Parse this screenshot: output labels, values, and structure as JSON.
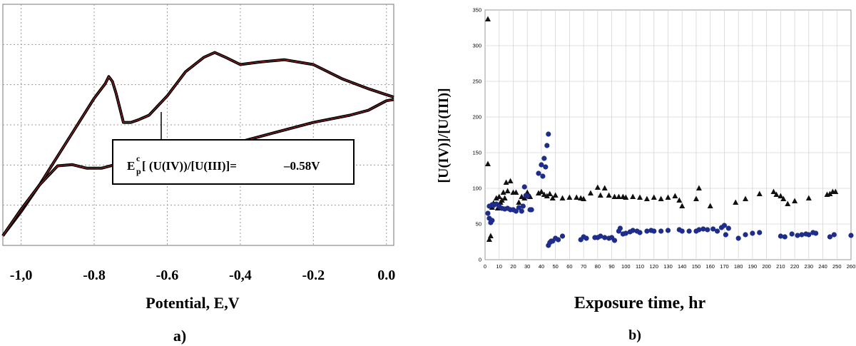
{
  "panel_a": {
    "xlabel": "Potential, E,V",
    "caption": "a)",
    "x_ticks": [
      "-1,0",
      "-0.8",
      "-0.6",
      "-0,4",
      "-0.2",
      "0.0"
    ],
    "annotation": {
      "e": "E",
      "sup": "c",
      "sub": "p",
      "rest": "[ (U(IV))/[U(III)]=",
      "value": "–0.58V"
    }
  },
  "panel_b": {
    "xlabel": "Exposure time, hr",
    "ylabel": "[U(IV)]/[U(III)]",
    "caption": "b)"
  },
  "chart_data": [
    {
      "type": "line",
      "xlabel": "Potential, E,V",
      "ylabel": "",
      "xlim": [
        -1.05,
        0.02
      ],
      "x_ticks": [
        -1.0,
        -0.8,
        -0.6,
        -0.4,
        -0.2,
        0.0
      ],
      "grid": true,
      "curve_color": "#000000",
      "trace_color": "#cc3333",
      "upper_branch": [
        [
          -1.05,
          0.04
        ],
        [
          -1.0,
          0.14
        ],
        [
          -0.95,
          0.25
        ],
        [
          -0.9,
          0.37
        ],
        [
          -0.85,
          0.49
        ],
        [
          -0.8,
          0.61
        ],
        [
          -0.77,
          0.67
        ],
        [
          -0.76,
          0.7
        ],
        [
          -0.75,
          0.68
        ],
        [
          -0.74,
          0.63
        ],
        [
          -0.73,
          0.57
        ],
        [
          -0.72,
          0.51
        ],
        [
          -0.7,
          0.51
        ],
        [
          -0.68,
          0.52
        ],
        [
          -0.65,
          0.54
        ],
        [
          -0.6,
          0.62
        ],
        [
          -0.55,
          0.72
        ],
        [
          -0.5,
          0.78
        ],
        [
          -0.47,
          0.8
        ],
        [
          -0.44,
          0.78
        ],
        [
          -0.4,
          0.75
        ],
        [
          -0.35,
          0.76
        ],
        [
          -0.28,
          0.77
        ],
        [
          -0.2,
          0.75
        ],
        [
          -0.12,
          0.69
        ],
        [
          -0.05,
          0.65
        ],
        [
          0.0,
          0.625
        ],
        [
          0.02,
          0.615
        ]
      ],
      "lower_branch": [
        [
          0.02,
          0.605
        ],
        [
          0.0,
          0.6
        ],
        [
          -0.05,
          0.56
        ],
        [
          -0.1,
          0.54
        ],
        [
          -0.2,
          0.51
        ],
        [
          -0.3,
          0.47
        ],
        [
          -0.4,
          0.43
        ],
        [
          -0.5,
          0.39
        ],
        [
          -0.55,
          0.36
        ],
        [
          -0.6,
          0.35
        ],
        [
          -0.65,
          0.335
        ],
        [
          -0.7,
          0.335
        ],
        [
          -0.73,
          0.34
        ],
        [
          -0.78,
          0.32
        ],
        [
          -0.82,
          0.32
        ],
        [
          -0.86,
          0.335
        ],
        [
          -0.9,
          0.33
        ],
        [
          -0.95,
          0.25
        ],
        [
          -1.0,
          0.15
        ],
        [
          -1.05,
          0.04
        ]
      ]
    },
    {
      "type": "scatter",
      "xlabel": "Exposure time, hr",
      "ylabel": "[U(IV)]/[U(III)]",
      "xlim": [
        0,
        260
      ],
      "ylim": [
        0,
        350
      ],
      "x_ticks": [
        0,
        10,
        20,
        30,
        40,
        50,
        60,
        70,
        80,
        90,
        100,
        110,
        120,
        130,
        140,
        150,
        160,
        170,
        180,
        190,
        200,
        210,
        220,
        230,
        240,
        250,
        260
      ],
      "y_ticks": [
        0,
        50,
        100,
        150,
        200,
        250,
        300,
        350
      ],
      "grid": true,
      "series": [
        {
          "marker": "triangle",
          "color": "#111111",
          "points": [
            [
              2,
              337
            ],
            [
              2,
              134
            ],
            [
              3,
              28
            ],
            [
              4,
              33
            ],
            [
              5,
              73
            ],
            [
              6,
              79
            ],
            [
              8,
              86
            ],
            [
              9,
              72
            ],
            [
              10,
              88
            ],
            [
              11,
              80
            ],
            [
              12,
              83
            ],
            [
              13,
              94
            ],
            [
              14,
              86
            ],
            [
              15,
              108
            ],
            [
              16,
              96
            ],
            [
              18,
              110
            ],
            [
              20,
              94
            ],
            [
              22,
              94
            ],
            [
              24,
              80
            ],
            [
              26,
              88
            ],
            [
              28,
              86
            ],
            [
              30,
              94
            ],
            [
              32,
              88
            ],
            [
              38,
              93
            ],
            [
              40,
              95
            ],
            [
              42,
              91
            ],
            [
              44,
              89
            ],
            [
              46,
              92
            ],
            [
              48,
              86
            ],
            [
              50,
              90
            ],
            [
              55,
              86
            ],
            [
              60,
              87
            ],
            [
              65,
              87
            ],
            [
              68,
              86
            ],
            [
              70,
              85
            ],
            [
              75,
              93
            ],
            [
              80,
              101
            ],
            [
              82,
              90
            ],
            [
              85,
              100
            ],
            [
              88,
              90
            ],
            [
              92,
              88
            ],
            [
              95,
              88
            ],
            [
              98,
              88
            ],
            [
              100,
              87
            ],
            [
              105,
              88
            ],
            [
              110,
              87
            ],
            [
              115,
              85
            ],
            [
              120,
              87
            ],
            [
              125,
              85
            ],
            [
              130,
              87
            ],
            [
              135,
              89
            ],
            [
              138,
              83
            ],
            [
              140,
              75
            ],
            [
              150,
              85
            ],
            [
              152,
              100
            ],
            [
              160,
              75
            ],
            [
              178,
              80
            ],
            [
              185,
              85
            ],
            [
              195,
              92
            ],
            [
              205,
              95
            ],
            [
              207,
              91
            ],
            [
              210,
              89
            ],
            [
              212,
              85
            ],
            [
              215,
              78
            ],
            [
              220,
              82
            ],
            [
              230,
              86
            ],
            [
              243,
              91
            ],
            [
              245,
              92
            ],
            [
              247,
              95
            ],
            [
              249,
              95
            ]
          ]
        },
        {
          "marker": "circle",
          "color": "#1f2d8a",
          "points": [
            [
              2,
              65
            ],
            [
              3,
              58
            ],
            [
              3,
              75
            ],
            [
              4,
              52
            ],
            [
              5,
              55
            ],
            [
              5,
              77
            ],
            [
              6,
              76
            ],
            [
              8,
              78
            ],
            [
              10,
              75
            ],
            [
              12,
              72
            ],
            [
              14,
              71
            ],
            [
              16,
              72
            ],
            [
              18,
              70
            ],
            [
              20,
              70
            ],
            [
              22,
              68
            ],
            [
              24,
              73
            ],
            [
              26,
              68
            ],
            [
              27,
              75
            ],
            [
              28,
              102
            ],
            [
              29,
              90
            ],
            [
              30,
              89
            ],
            [
              32,
              70
            ],
            [
              33,
              70
            ],
            [
              38,
              121
            ],
            [
              40,
              133
            ],
            [
              41,
              117
            ],
            [
              42,
              142
            ],
            [
              43,
              130
            ],
            [
              44,
              160
            ],
            [
              45,
              176
            ],
            [
              45,
              20
            ],
            [
              46,
              24
            ],
            [
              47,
              26
            ],
            [
              48,
              26
            ],
            [
              50,
              30
            ],
            [
              52,
              28
            ],
            [
              55,
              33
            ],
            [
              68,
              28
            ],
            [
              70,
              32
            ],
            [
              72,
              30
            ],
            [
              78,
              31
            ],
            [
              80,
              31
            ],
            [
              82,
              33
            ],
            [
              85,
              31
            ],
            [
              88,
              30
            ],
            [
              90,
              31
            ],
            [
              92,
              27
            ],
            [
              95,
              40
            ],
            [
              96,
              44
            ],
            [
              98,
              36
            ],
            [
              100,
              37
            ],
            [
              103,
              39
            ],
            [
              105,
              41
            ],
            [
              108,
              40
            ],
            [
              110,
              38
            ],
            [
              115,
              40
            ],
            [
              118,
              41
            ],
            [
              120,
              40
            ],
            [
              125,
              40
            ],
            [
              130,
              41
            ],
            [
              138,
              42
            ],
            [
              140,
              40
            ],
            [
              145,
              40
            ],
            [
              150,
              40
            ],
            [
              152,
              42
            ],
            [
              155,
              43
            ],
            [
              158,
              42
            ],
            [
              162,
              43
            ],
            [
              165,
              40
            ],
            [
              168,
              45
            ],
            [
              170,
              48
            ],
            [
              171,
              35
            ],
            [
              173,
              44
            ],
            [
              180,
              30
            ],
            [
              185,
              35
            ],
            [
              190,
              37
            ],
            [
              195,
              38
            ],
            [
              210,
              33
            ],
            [
              213,
              32
            ],
            [
              218,
              36
            ],
            [
              222,
              34
            ],
            [
              225,
              35
            ],
            [
              228,
              36
            ],
            [
              230,
              35
            ],
            [
              233,
              38
            ],
            [
              235,
              37
            ],
            [
              245,
              32
            ],
            [
              248,
              35
            ],
            [
              260,
              34
            ]
          ]
        }
      ]
    }
  ]
}
